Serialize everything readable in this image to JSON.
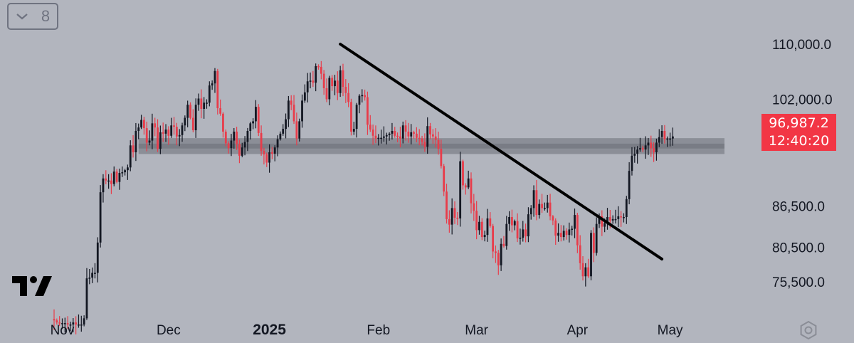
{
  "toolbar": {
    "interval_label": "8"
  },
  "price_badge": {
    "price": "96,987.2",
    "countdown": "12:40:20"
  },
  "chart_data": {
    "type": "candlestick",
    "y_ticks": [
      {
        "value": 110000,
        "label": "110,000.0"
      },
      {
        "value": 102000,
        "label": "102,000.0"
      },
      {
        "value": 86500,
        "label": "86,500.0"
      },
      {
        "value": 80500,
        "label": "80,500.0"
      },
      {
        "value": 75500,
        "label": "75,500.0"
      }
    ],
    "x_ticks": [
      {
        "label": "Nov",
        "index": 3,
        "bold": false
      },
      {
        "label": "Dec",
        "index": 42,
        "bold": false
      },
      {
        "label": "2025",
        "index": 79,
        "bold": true
      },
      {
        "label": "Feb",
        "index": 119,
        "bold": false
      },
      {
        "label": "Mar",
        "index": 155,
        "bold": false
      },
      {
        "label": "Apr",
        "index": 192,
        "bold": false
      },
      {
        "label": "May",
        "index": 226,
        "bold": false
      }
    ],
    "colors": {
      "up": "#131722",
      "down": "#e83c4a",
      "zone": "#6b6e76",
      "background": "#b2b5be",
      "badge": "#f23645"
    },
    "support_zone": {
      "outer": [
        94050,
        96350
      ],
      "inner": [
        94850,
        95550
      ],
      "start_index": 31
    },
    "trendline": {
      "from": {
        "index": 105,
        "price": 110000
      },
      "to": {
        "index": 223,
        "price": 78800
      }
    },
    "close_series": [
      69900,
      69600,
      69500,
      69500,
      69500,
      69300,
      69300,
      69600,
      69300,
      69300,
      69300,
      70200,
      76000,
      76100,
      76800,
      76800,
      81200,
      88500,
      90500,
      90200,
      90200,
      89700,
      91500,
      90000,
      91300,
      91400,
      91700,
      92100,
      95300,
      94300,
      97400,
      97900,
      99000,
      97800,
      95700,
      96000,
      98500,
      97900,
      94800,
      97200,
      97000,
      97600,
      96700,
      98200,
      98000,
      96600,
      96800,
      98200,
      99300,
      101200,
      99300,
      97500,
      101200,
      102100,
      100600,
      101500,
      101500,
      104000,
      104300,
      106100,
      100700,
      99900,
      97300,
      95600,
      94900,
      96000,
      97300,
      95500,
      93800,
      95000,
      95800,
      97400,
      98500,
      98800,
      100900,
      97100,
      94500,
      94000,
      92800,
      94300,
      94100,
      95000,
      96200,
      97000,
      97700,
      99100,
      101800,
      101200,
      98800,
      96300,
      98800,
      101800,
      103000,
      104600,
      104700,
      104400,
      106800,
      106700,
      105700,
      103600,
      102000,
      105100,
      103900,
      104700,
      102900,
      106200,
      103800,
      102900,
      101600,
      97300,
      97700,
      101200,
      102500,
      102600,
      102300,
      98300,
      97600,
      96700,
      96300,
      96400,
      96400,
      96600,
      96800,
      97000,
      97400,
      96700,
      96600,
      96300,
      98200,
      97300,
      96600,
      97200,
      97000,
      96400,
      96300,
      95800,
      95100,
      98100,
      96900,
      96600,
      96100,
      94800,
      92300,
      88600,
      84600,
      83800,
      86200,
      84800,
      84700,
      93000,
      89500,
      89200,
      90500,
      86900,
      85800,
      83000,
      84200,
      82000,
      82300,
      84700,
      83600,
      79900,
      79700,
      77900,
      81000,
      80700,
      83900,
      84900,
      83700,
      84300,
      81800,
      81900,
      83100,
      82100,
      85300,
      86200,
      88800,
      85200,
      86800,
      86200,
      86200,
      87000,
      85000,
      84400,
      82200,
      82600,
      82000,
      82900,
      82300,
      83100,
      83200,
      85200,
      80800,
      78200,
      76300,
      77600,
      76300,
      82600,
      79700,
      83900,
      85000,
      83500,
      84000,
      84900,
      84400,
      84600,
      84600,
      85000,
      84900,
      84900,
      87500,
      91600,
      93800,
      94100,
      94700,
      94900,
      94700,
      95300,
      95700,
      94900,
      94300,
      95700,
      96500,
      97400,
      96200,
      96300,
      96300,
      96600
    ]
  }
}
